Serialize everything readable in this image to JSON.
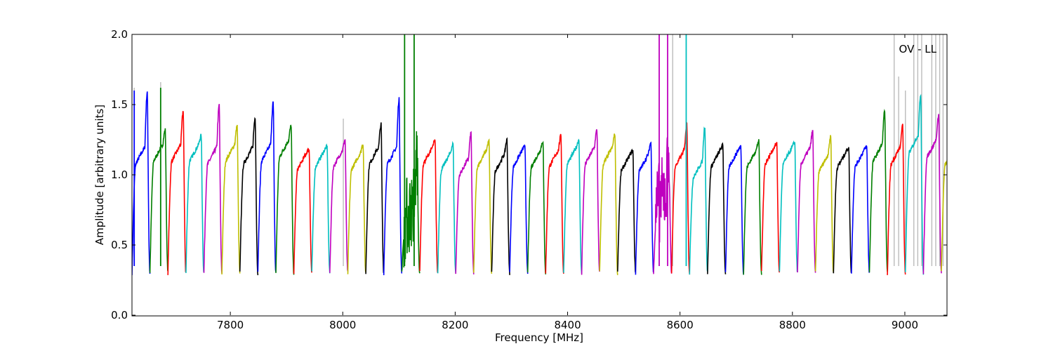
{
  "chart_data": {
    "type": "line",
    "title": "",
    "xlabel": "Frequency [MHz]",
    "ylabel": "Amplitude [arbitrary units]",
    "annotation": "OV - LL",
    "xlim": [
      7625,
      9075
    ],
    "ylim": [
      0.0,
      2.0
    ],
    "xticks": [
      7800,
      8000,
      8200,
      8400,
      8600,
      8800,
      9000
    ],
    "yticks": [
      0.0,
      0.5,
      1.0,
      1.5,
      2.0
    ],
    "ytick_labels": [
      "0.0",
      "0.5",
      "1.0",
      "1.5",
      "2.0"
    ],
    "grid": false,
    "legend": "none",
    "colors": {
      "blue": "#0000ff",
      "green": "#007f00",
      "red": "#ff0000",
      "cyan": "#00bfbf",
      "magenta": "#bf00bf",
      "olive": "#bfbf00",
      "black": "#000000",
      "flag_gray": "#bbbbbb"
    },
    "band_width_mhz": 32,
    "band_edge_min": 0.3,
    "bands": [
      {
        "start": 7625,
        "color": "blue",
        "peak": 1.6,
        "level": 1.2
      },
      {
        "start": 7657,
        "color": "green",
        "peak": 1.32,
        "level": 1.22
      },
      {
        "start": 7689,
        "color": "red",
        "peak": 1.46,
        "level": 1.22
      },
      {
        "start": 7721,
        "color": "cyan",
        "peak": 1.28,
        "level": 1.22
      },
      {
        "start": 7753,
        "color": "magenta",
        "peak": 1.5,
        "level": 1.2
      },
      {
        "start": 7785,
        "color": "olive",
        "peak": 1.35,
        "level": 1.22
      },
      {
        "start": 7817,
        "color": "black",
        "peak": 1.41,
        "level": 1.2
      },
      {
        "start": 7849,
        "color": "blue",
        "peak": 1.52,
        "level": 1.22
      },
      {
        "start": 7881,
        "color": "green",
        "peak": 1.35,
        "level": 1.25
      },
      {
        "start": 7913,
        "color": "red",
        "peak": 1.18,
        "level": 1.16
      },
      {
        "start": 7945,
        "color": "cyan",
        "peak": 1.2,
        "level": 1.18
      },
      {
        "start": 7977,
        "color": "magenta",
        "peak": 1.25,
        "level": 1.18
      },
      {
        "start": 8009,
        "color": "olive",
        "peak": 1.22,
        "level": 1.16
      },
      {
        "start": 8041,
        "color": "black",
        "peak": 1.36,
        "level": 1.2
      },
      {
        "start": 8073,
        "color": "blue",
        "peak": 1.55,
        "level": 1.2
      },
      {
        "start": 8105,
        "color": "green",
        "peak": 1.15,
        "level": 0.8
      },
      {
        "start": 8137,
        "color": "red",
        "peak": 1.24,
        "level": 1.2
      },
      {
        "start": 8169,
        "color": "cyan",
        "peak": 1.22,
        "level": 1.16
      },
      {
        "start": 8201,
        "color": "magenta",
        "peak": 1.3,
        "level": 1.12
      },
      {
        "start": 8233,
        "color": "olive",
        "peak": 1.24,
        "level": 1.18
      },
      {
        "start": 8265,
        "color": "black",
        "peak": 1.25,
        "level": 1.15
      },
      {
        "start": 8297,
        "color": "blue",
        "peak": 1.2,
        "level": 1.18
      },
      {
        "start": 8329,
        "color": "green",
        "peak": 1.24,
        "level": 1.18
      },
      {
        "start": 8361,
        "color": "red",
        "peak": 1.28,
        "level": 1.18
      },
      {
        "start": 8393,
        "color": "cyan",
        "peak": 1.25,
        "level": 1.2
      },
      {
        "start": 8425,
        "color": "magenta",
        "peak": 1.32,
        "level": 1.2
      },
      {
        "start": 8457,
        "color": "olive",
        "peak": 1.29,
        "level": 1.2
      },
      {
        "start": 8489,
        "color": "black",
        "peak": 1.17,
        "level": 1.15
      },
      {
        "start": 8521,
        "color": "blue",
        "peak": 1.23,
        "level": 1.15
      },
      {
        "start": 8553,
        "color": "magenta",
        "peak": 1.25,
        "level": 0.9
      },
      {
        "start": 8585,
        "color": "red",
        "peak": 1.37,
        "level": 1.18
      },
      {
        "start": 8617,
        "color": "cyan",
        "peak": 1.35,
        "level": 1.1
      },
      {
        "start": 8649,
        "color": "black",
        "peak": 1.21,
        "level": 1.18
      },
      {
        "start": 8681,
        "color": "blue",
        "peak": 1.2,
        "level": 1.18
      },
      {
        "start": 8713,
        "color": "green",
        "peak": 1.24,
        "level": 1.18
      },
      {
        "start": 8745,
        "color": "red",
        "peak": 1.22,
        "level": 1.2
      },
      {
        "start": 8777,
        "color": "cyan",
        "peak": 1.23,
        "level": 1.2
      },
      {
        "start": 8809,
        "color": "magenta",
        "peak": 1.31,
        "level": 1.2
      },
      {
        "start": 8841,
        "color": "olive",
        "peak": 1.28,
        "level": 1.15
      },
      {
        "start": 8873,
        "color": "black",
        "peak": 1.19,
        "level": 1.17
      },
      {
        "start": 8905,
        "color": "blue",
        "peak": 1.2,
        "level": 1.18
      },
      {
        "start": 8937,
        "color": "green",
        "peak": 1.46,
        "level": 1.22
      },
      {
        "start": 8969,
        "color": "red",
        "peak": 1.35,
        "level": 1.2
      },
      {
        "start": 9001,
        "color": "cyan",
        "peak": 1.57,
        "level": 1.28
      },
      {
        "start": 9033,
        "color": "magenta",
        "peak": 1.43,
        "level": 1.25
      },
      {
        "start": 9065,
        "color": "olive",
        "peak": 1.5,
        "level": 1.2
      }
    ],
    "rfi_spikes": [
      {
        "x": 7629,
        "top": 1.6,
        "color": "blue"
      },
      {
        "x": 7676,
        "top": 1.62,
        "color": "green"
      },
      {
        "x": 8110,
        "top": 2.0,
        "color": "green"
      },
      {
        "x": 8127,
        "top": 2.0,
        "color": "green"
      },
      {
        "x": 8563,
        "top": 2.0,
        "color": "magenta"
      },
      {
        "x": 8578,
        "top": 2.0,
        "color": "magenta"
      },
      {
        "x": 8611,
        "top": 2.0,
        "color": "cyan"
      },
      {
        "x": 8587,
        "top": 2.0,
        "color": "flag_gray"
      },
      {
        "x": 8563,
        "top": 2.0,
        "color": "flag_gray"
      },
      {
        "x": 7629,
        "top": 1.62,
        "color": "flag_gray"
      },
      {
        "x": 7676,
        "top": 1.66,
        "color": "flag_gray"
      },
      {
        "x": 8001,
        "top": 1.4,
        "color": "flag_gray"
      },
      {
        "x": 8981,
        "top": 2.0,
        "color": "flag_gray"
      },
      {
        "x": 8989,
        "top": 1.7,
        "color": "flag_gray"
      },
      {
        "x": 9001,
        "top": 1.6,
        "color": "flag_gray"
      },
      {
        "x": 9016,
        "top": 2.0,
        "color": "flag_gray"
      },
      {
        "x": 9023,
        "top": 2.0,
        "color": "flag_gray"
      },
      {
        "x": 9030,
        "top": 2.0,
        "color": "flag_gray"
      },
      {
        "x": 9048,
        "top": 2.0,
        "color": "flag_gray"
      },
      {
        "x": 9055,
        "top": 2.0,
        "color": "flag_gray"
      },
      {
        "x": 9062,
        "top": 2.0,
        "color": "flag_gray"
      },
      {
        "x": 9068,
        "top": 2.0,
        "color": "flag_gray"
      }
    ]
  }
}
